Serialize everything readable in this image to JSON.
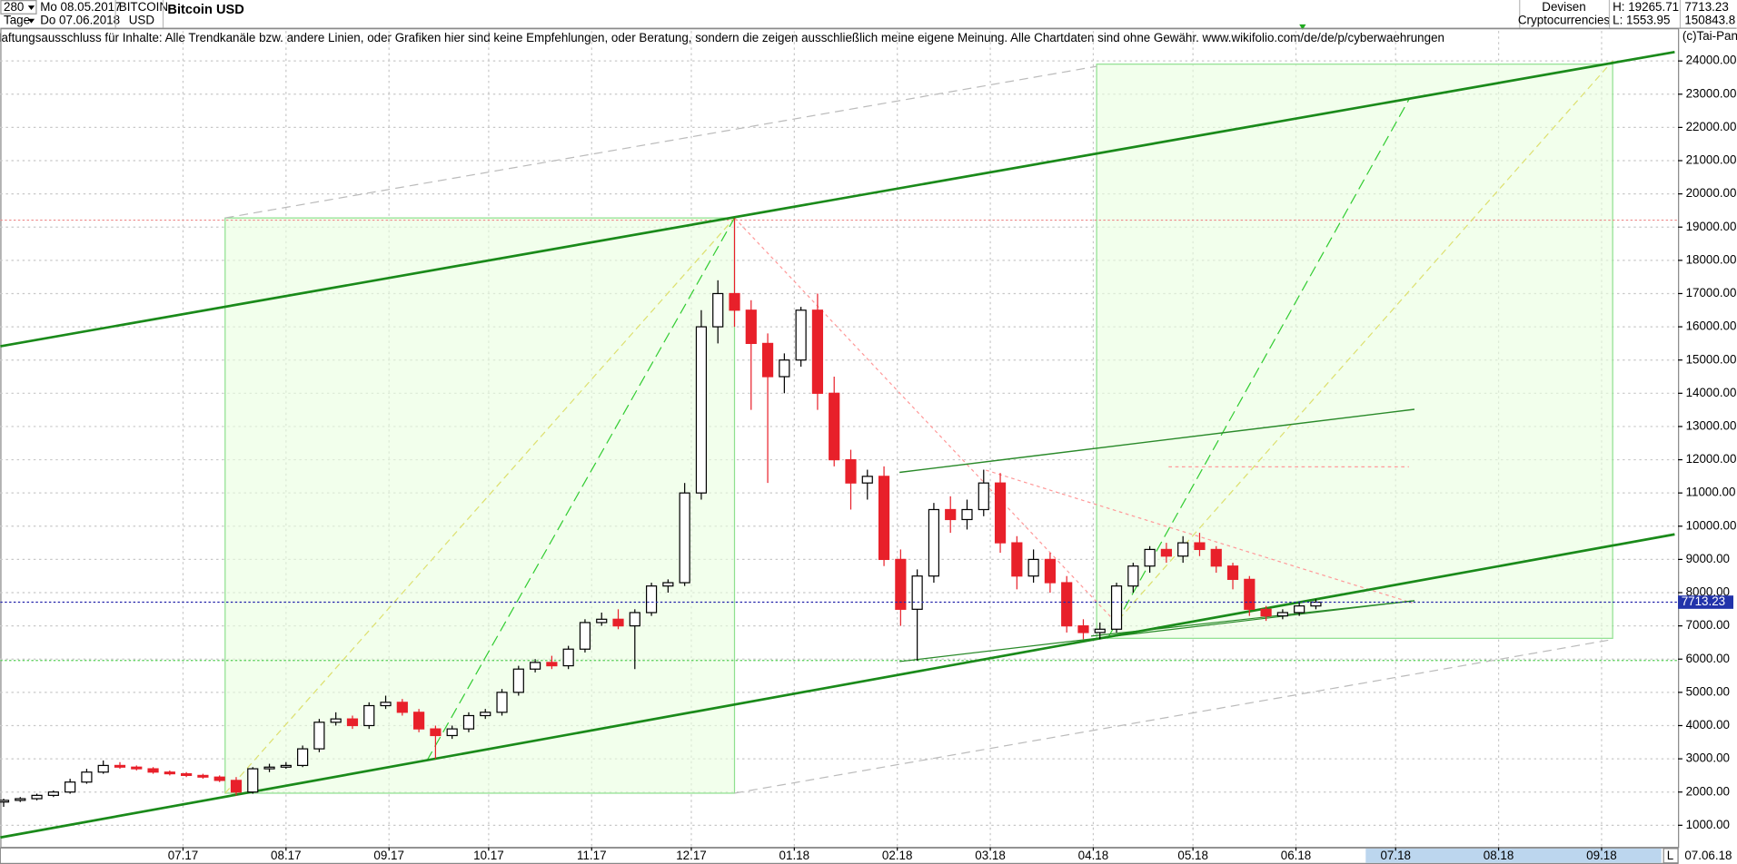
{
  "header": {
    "period": "280",
    "unit": "Tage",
    "start": "Mo 08.05.2017",
    "end": "Do 07.06.2018",
    "symbol": "BITCOIN",
    "currency": "USD",
    "market": "Devisen",
    "sector": "Cryptocurrencies",
    "high": "H: 19265.71",
    "low": "L: 1553.95",
    "last": "7713.23",
    "volume": "150843.8",
    "disclaimer": "Haftungsausschluss für Inhalte: Alle Trendkanäle bzw. andere Linien, oder Grafiken hier sind keine Empfehlungen, oder Beratung, sondern die zeigen ausschließlich meine eigene Meinung. Alle Chartdaten sind ohne Gewähr.  www.wikifolio.com/de/de/p/cyberwaehrungen",
    "copyright": "(c)Tai-Pan",
    "scale_mode": "L",
    "date": "07.06.18"
  },
  "chart_data": {
    "type": "candlestick",
    "title": "Bitcoin USD",
    "up_color": "#000000",
    "down_color": "#e8202a",
    "x": [
      0,
      5,
      10,
      15,
      20,
      25,
      30,
      35,
      40,
      45,
      50,
      55,
      60,
      65,
      70,
      75,
      80,
      85,
      90,
      95,
      100,
      105,
      110,
      115,
      120,
      125,
      130,
      135,
      140,
      145,
      150,
      155,
      160,
      165,
      170,
      175,
      180,
      185,
      190,
      195,
      200,
      205,
      210,
      215,
      220,
      225,
      230,
      235,
      240,
      245,
      250,
      255,
      260,
      265,
      270,
      275,
      280,
      285,
      290,
      295,
      300,
      305,
      310,
      315,
      320,
      325,
      330,
      335,
      340,
      345,
      350,
      355,
      360,
      365,
      370,
      375,
      380,
      385,
      390,
      395
    ],
    "open": [
      1700,
      1750,
      1800,
      1900,
      2000,
      2300,
      2600,
      2800,
      2750,
      2700,
      2600,
      2550,
      2500,
      2450,
      2350,
      2000,
      2700,
      2750,
      2800,
      3300,
      4100,
      4200,
      4000,
      4600,
      4700,
      4400,
      3900,
      3700,
      3900,
      4300,
      4400,
      5000,
      5700,
      5900,
      5800,
      6300,
      7100,
      7200,
      7000,
      7400,
      8200,
      8300,
      11000,
      16000,
      17000,
      16500,
      15500,
      14500,
      15000,
      16500,
      14000,
      12000,
      11300,
      11500,
      9000,
      7500,
      8500,
      10500,
      10200,
      10500,
      11300,
      9500,
      8500,
      9000,
      8300,
      7000,
      6800,
      6900,
      8200,
      8800,
      9300,
      9100,
      9500,
      9300,
      8800,
      8400,
      7500,
      7300,
      7400,
      7600
    ],
    "high": [
      1800,
      1850,
      1950,
      2050,
      2400,
      2700,
      2950,
      2900,
      2800,
      2750,
      2650,
      2600,
      2550,
      2500,
      2450,
      2750,
      2850,
      2900,
      3400,
      4200,
      4400,
      4300,
      4700,
      4900,
      4800,
      4500,
      4000,
      4000,
      4400,
      4500,
      5100,
      5800,
      6000,
      6100,
      6400,
      7200,
      7400,
      7500,
      7500,
      8300,
      8400,
      11300,
      16500,
      17400,
      19265.71,
      16800,
      15800,
      15200,
      16600,
      17000,
      14500,
      12300,
      11700,
      11800,
      9300,
      8700,
      10700,
      10900,
      10800,
      11700,
      11600,
      9700,
      9300,
      9200,
      8500,
      7200,
      7100,
      8300,
      8900,
      9400,
      9500,
      9700,
      9800,
      9400,
      8900,
      8500,
      7600,
      7500,
      7700,
      7800
    ],
    "low": [
      1553.95,
      1700,
      1750,
      1850,
      1950,
      2250,
      2550,
      2700,
      2650,
      2550,
      2500,
      2450,
      2400,
      2300,
      1900,
      1950,
      2600,
      2700,
      2750,
      3200,
      4000,
      3900,
      3900,
      4500,
      4300,
      3800,
      3000,
      3600,
      3800,
      4200,
      4300,
      4900,
      5600,
      5700,
      5700,
      6200,
      7000,
      6900,
      5700,
      7300,
      8000,
      8200,
      10800,
      15500,
      16000,
      13500,
      11300,
      14000,
      14800,
      13500,
      11800,
      10500,
      10800,
      8800,
      7000,
      5950,
      8300,
      9800,
      9900,
      10300,
      9200,
      8100,
      8300,
      8000,
      6800,
      6600,
      6600,
      6800,
      8000,
      8600,
      8900,
      8900,
      9100,
      8600,
      8100,
      7300,
      7150,
      7200,
      7300,
      7500
    ],
    "close": [
      1750,
      1800,
      1900,
      2000,
      2300,
      2600,
      2800,
      2750,
      2700,
      2600,
      2550,
      2500,
      2450,
      2350,
      2000,
      2700,
      2750,
      2800,
      3300,
      4100,
      4200,
      4000,
      4600,
      4700,
      4400,
      3900,
      3700,
      3900,
      4300,
      4400,
      5000,
      5700,
      5900,
      5800,
      6300,
      7100,
      7200,
      7000,
      7400,
      8200,
      8300,
      11000,
      16000,
      17000,
      16500,
      15500,
      14500,
      15000,
      16500,
      14000,
      12000,
      11300,
      11500,
      9000,
      7500,
      8500,
      10500,
      10200,
      10500,
      11300,
      9500,
      8500,
      9000,
      8300,
      7000,
      6800,
      6900,
      8200,
      8800,
      9300,
      9100,
      9500,
      9300,
      8800,
      8400,
      7500,
      7300,
      7400,
      7600,
      7713.23
    ],
    "xlim": [
      -1,
      504
    ],
    "xticks": [
      {
        "value": 54,
        "label": "07.17"
      },
      {
        "value": 85,
        "label": "08.17"
      },
      {
        "value": 116,
        "label": "09.17"
      },
      {
        "value": 146,
        "label": "10.17"
      },
      {
        "value": 177,
        "label": "11.17"
      },
      {
        "value": 207,
        "label": "12.17"
      },
      {
        "value": 238,
        "label": "01.18"
      },
      {
        "value": 269,
        "label": "02.18"
      },
      {
        "value": 297,
        "label": "03.18"
      },
      {
        "value": 328,
        "label": "04.18"
      },
      {
        "value": 358,
        "label": "05.18"
      },
      {
        "value": 389,
        "label": "06.18"
      },
      {
        "value": 419,
        "label": "07.18"
      },
      {
        "value": 450,
        "label": "08.18"
      },
      {
        "value": 481,
        "label": "09.18"
      }
    ],
    "ylim": [
      334,
      24436
    ],
    "yticks": [
      {
        "value": 1000,
        "label": "1000.00"
      },
      {
        "value": 2000,
        "label": "2000.00"
      },
      {
        "value": 3000,
        "label": "3000.00"
      },
      {
        "value": 4000,
        "label": "4000.00"
      },
      {
        "value": 5000,
        "label": "5000.00"
      },
      {
        "value": 6000,
        "label": "6000.00"
      },
      {
        "value": 7000,
        "label": "7000.00"
      },
      {
        "value": 8000,
        "label": "8000.00"
      },
      {
        "value": 9000,
        "label": "9000.00"
      },
      {
        "value": 10000,
        "label": "10000.00"
      },
      {
        "value": 11000,
        "label": "11000.00"
      },
      {
        "value": 12000,
        "label": "12000.00"
      },
      {
        "value": 13000,
        "label": "13000.00"
      },
      {
        "value": 14000,
        "label": "14000.00"
      },
      {
        "value": 15000,
        "label": "15000.00"
      },
      {
        "value": 16000,
        "label": "16000.00"
      },
      {
        "value": 17000,
        "label": "17000.00"
      },
      {
        "value": 18000,
        "label": "18000.00"
      },
      {
        "value": 19000,
        "label": "19000.00"
      },
      {
        "value": 20000,
        "label": "20000.00"
      },
      {
        "value": 21000,
        "label": "21000.00"
      },
      {
        "value": 22000,
        "label": "22000.00"
      },
      {
        "value": 23000,
        "label": "23000.00"
      },
      {
        "value": 24000,
        "label": "24000.00"
      }
    ],
    "grid": true
  }
}
